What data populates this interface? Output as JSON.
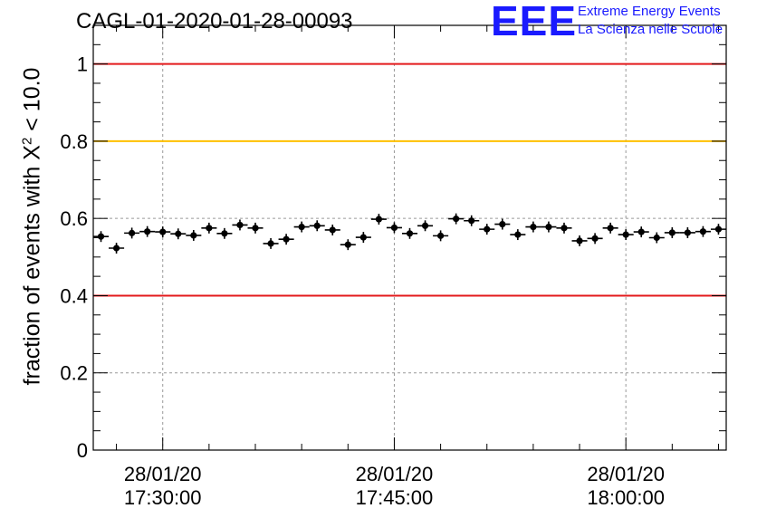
{
  "header": {
    "title": "CAGL-01-2020-01-28-00093",
    "logo_text": "EEE",
    "logo_line1": "Extreme Energy Events",
    "logo_line2": "La Scienza nelle Scuole"
  },
  "colors": {
    "red_line": "#e31a1c",
    "yellow_line": "#ffc000",
    "logo": "#1a1aff",
    "points": "#000000",
    "grid": "#9a9a9a"
  },
  "chart_data": {
    "type": "scatter",
    "title": "CAGL-01-2020-01-28-00093",
    "ylabel": {
      "prefix": "fraction of events with X",
      "sup": "2",
      "suffix": " < 10.0"
    },
    "xlabel": "",
    "ylim": [
      0,
      1.1
    ],
    "yticks": [
      "0",
      "0.2",
      "0.4",
      "0.6",
      "0.8",
      "1"
    ],
    "ytick_values": [
      0,
      0.2,
      0.4,
      0.6,
      0.8,
      1.0
    ],
    "x_range_minutes": [
      "17:25:30",
      "18:06:30"
    ],
    "xticks": [
      {
        "time": "17:30:00",
        "date": "28/01/20",
        "label": "17:30:00"
      },
      {
        "time": "17:45:00",
        "date": "28/01/20",
        "label": "17:45:00"
      },
      {
        "time": "18:00:00",
        "date": "28/01/20",
        "label": "18:00:00"
      }
    ],
    "grid": true,
    "reference_lines": [
      {
        "y": 1.0,
        "color": "red"
      },
      {
        "y": 0.8,
        "color": "yellow"
      },
      {
        "y": 0.4,
        "color": "red"
      }
    ],
    "series": [
      {
        "x": [
          "17:26:00",
          "17:27:00",
          "17:28:00",
          "17:29:00",
          "17:30:00",
          "17:31:00",
          "17:32:00",
          "17:33:00",
          "17:34:00",
          "17:35:00",
          "17:36:00",
          "17:37:00",
          "17:38:00",
          "17:39:00",
          "17:40:00",
          "17:41:00",
          "17:42:00",
          "17:43:00",
          "17:44:00",
          "17:45:00",
          "17:46:00",
          "17:47:00",
          "17:48:00",
          "17:49:00",
          "17:50:00",
          "17:51:00",
          "17:52:00",
          "17:53:00",
          "17:54:00",
          "17:55:00",
          "17:56:00",
          "17:57:00",
          "17:58:00",
          "17:59:00",
          "18:00:00",
          "18:01:00",
          "18:02:00",
          "18:03:00",
          "18:04:00",
          "18:05:00",
          "18:06:00"
        ],
        "values": [
          0.553,
          0.523,
          0.562,
          0.566,
          0.565,
          0.56,
          0.556,
          0.575,
          0.561,
          0.583,
          0.575,
          0.535,
          0.546,
          0.578,
          0.581,
          0.57,
          0.532,
          0.551,
          0.598,
          0.576,
          0.561,
          0.581,
          0.555,
          0.599,
          0.594,
          0.572,
          0.585,
          0.558,
          0.578,
          0.578,
          0.575,
          0.542,
          0.548,
          0.575,
          0.558,
          0.565,
          0.55,
          0.563,
          0.563,
          0.566,
          0.572
        ],
        "errors": [
          0.014,
          0.014,
          0.014,
          0.014,
          0.014,
          0.014,
          0.014,
          0.014,
          0.014,
          0.014,
          0.014,
          0.014,
          0.014,
          0.014,
          0.014,
          0.014,
          0.014,
          0.014,
          0.014,
          0.014,
          0.014,
          0.014,
          0.014,
          0.014,
          0.014,
          0.014,
          0.014,
          0.014,
          0.014,
          0.014,
          0.014,
          0.014,
          0.014,
          0.014,
          0.014,
          0.014,
          0.014,
          0.014,
          0.014,
          0.014,
          0.014
        ]
      }
    ]
  }
}
